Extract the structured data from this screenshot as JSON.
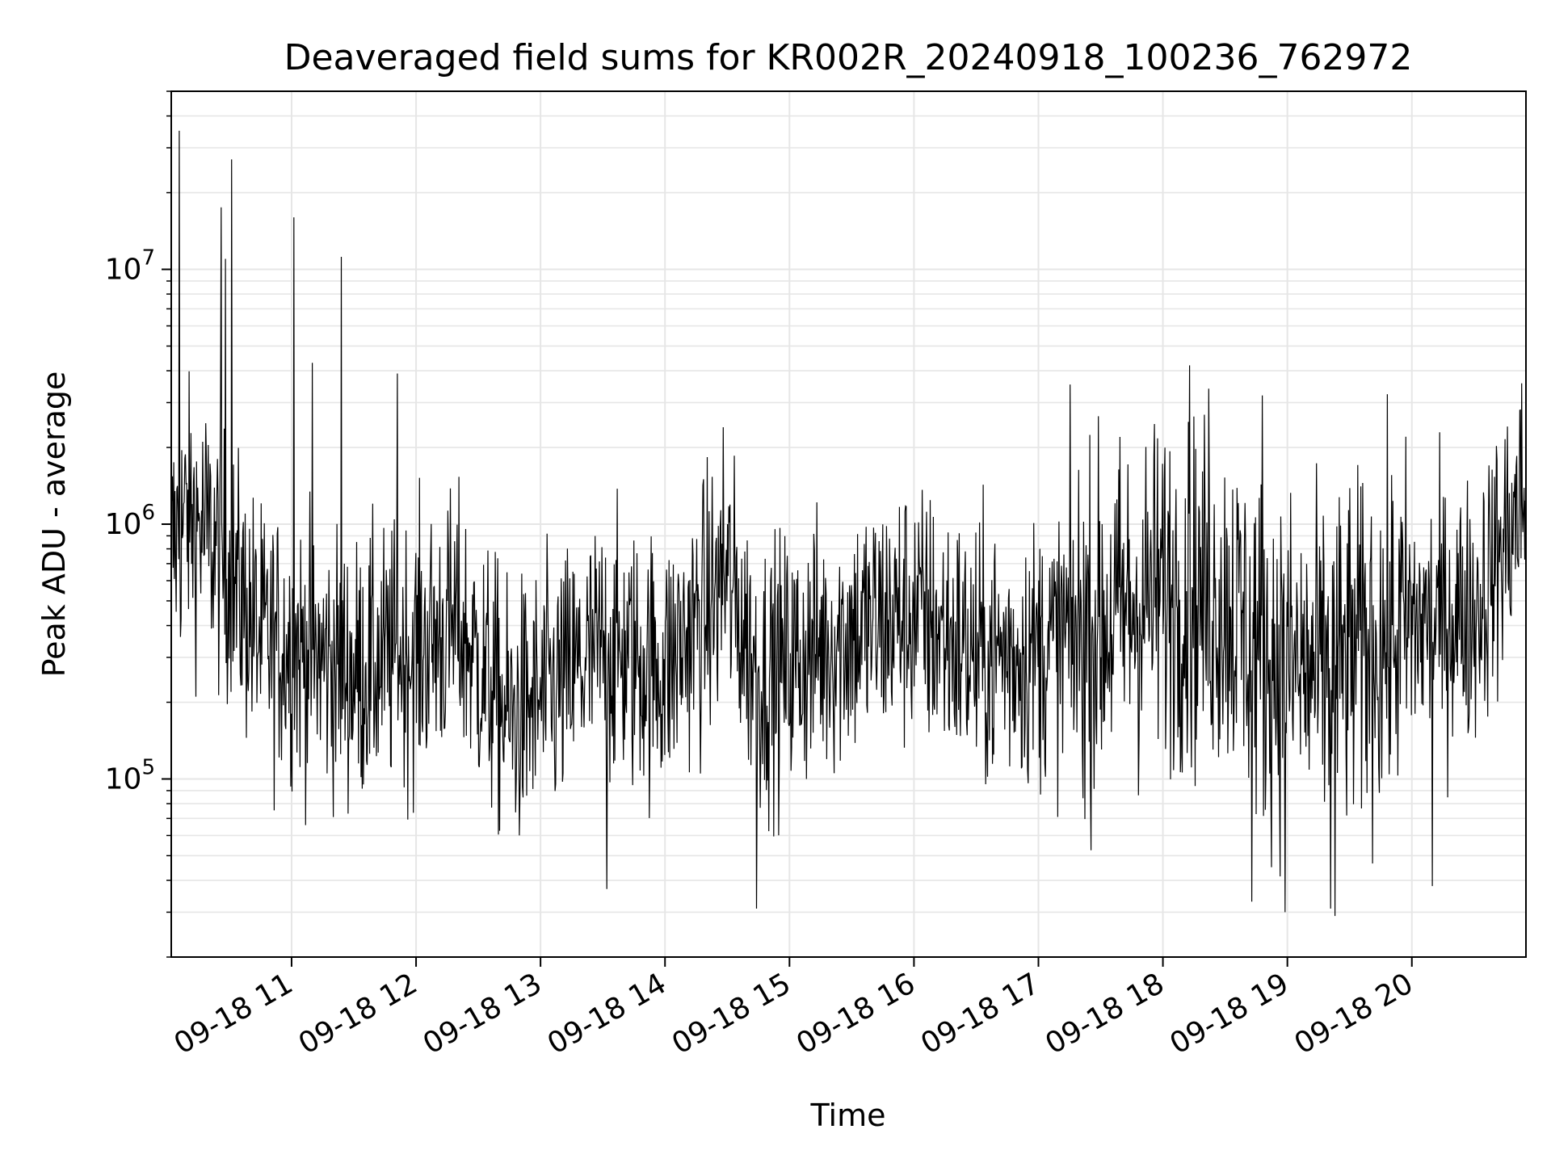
{
  "chart_data": {
    "type": "line",
    "title": "Deaveraged field sums for KR002R_20240918_100236_762972",
    "xlabel": "Time",
    "ylabel": "Peak ADU - average",
    "yscale": "log",
    "ylim": [
      20000,
      50000000
    ],
    "xlim": [
      "2024-09-18 10:02",
      "2024-09-18 20:55"
    ],
    "grid": true,
    "line_color": "#000000",
    "grid_color": "#e6e6e6",
    "x_ticks": [
      {
        "value": "2024-09-18 11:00",
        "label": "09-18 11"
      },
      {
        "value": "2024-09-18 12:00",
        "label": "09-18 12"
      },
      {
        "value": "2024-09-18 13:00",
        "label": "09-18 13"
      },
      {
        "value": "2024-09-18 14:00",
        "label": "09-18 14"
      },
      {
        "value": "2024-09-18 15:00",
        "label": "09-18 15"
      },
      {
        "value": "2024-09-18 16:00",
        "label": "09-18 16"
      },
      {
        "value": "2024-09-18 17:00",
        "label": "09-18 17"
      },
      {
        "value": "2024-09-18 18:00",
        "label": "09-18 18"
      },
      {
        "value": "2024-09-18 19:00",
        "label": "09-18 19"
      },
      {
        "value": "2024-09-18 20:00",
        "label": "09-18 20"
      }
    ],
    "y_ticks": [
      {
        "value": 100000,
        "base": "10",
        "exp": "5"
      },
      {
        "value": 1000000,
        "base": "10",
        "exp": "6"
      },
      {
        "value": 10000000,
        "base": "10",
        "exp": "7"
      }
    ],
    "series": [
      {
        "trend": [
          [
            "2024-09-18 10:02",
            800000
          ],
          [
            "2024-09-18 10:10",
            1100000
          ],
          [
            "2024-09-18 10:20",
            900000
          ],
          [
            "2024-09-18 10:30",
            650000
          ],
          [
            "2024-09-18 10:45",
            350000
          ],
          [
            "2024-09-18 11:00",
            330000
          ],
          [
            "2024-09-18 11:30",
            260000
          ],
          [
            "2024-09-18 12:00",
            320000
          ],
          [
            "2024-09-18 12:20",
            400000
          ],
          [
            "2024-09-18 12:45",
            170000
          ],
          [
            "2024-09-18 13:00",
            200000
          ],
          [
            "2024-09-18 13:30",
            320000
          ],
          [
            "2024-09-18 14:00",
            270000
          ],
          [
            "2024-09-18 14:30",
            600000
          ],
          [
            "2024-09-18 14:45",
            250000
          ],
          [
            "2024-09-18 15:00",
            280000
          ],
          [
            "2024-09-18 15:30",
            380000
          ],
          [
            "2024-09-18 16:00",
            450000
          ],
          [
            "2024-09-18 16:30",
            300000
          ],
          [
            "2024-09-18 17:00",
            320000
          ],
          [
            "2024-09-18 17:30",
            400000
          ],
          [
            "2024-09-18 18:00",
            550000
          ],
          [
            "2024-09-18 18:30",
            500000
          ],
          [
            "2024-09-18 18:50",
            300000
          ],
          [
            "2024-09-18 19:15",
            250000
          ],
          [
            "2024-09-18 19:40",
            330000
          ],
          [
            "2024-09-18 20:00",
            400000
          ],
          [
            "2024-09-18 20:30",
            450000
          ],
          [
            "2024-09-18 20:55",
            1300000
          ]
        ],
        "spikes": [
          [
            "2024-09-18 10:06",
            35000000
          ],
          [
            "2024-09-18 10:26",
            17500000
          ],
          [
            "2024-09-18 10:28",
            11000000
          ],
          [
            "2024-09-18 10:31",
            27000000
          ],
          [
            "2024-09-18 11:01",
            16000000
          ],
          [
            "2024-09-18 11:10",
            4300000
          ],
          [
            "2024-09-18 11:24",
            11200000
          ],
          [
            "2024-09-18 11:51",
            3900000
          ],
          [
            "2024-09-18 14:28",
            2400000
          ],
          [
            "2024-09-18 18:13",
            4200000
          ],
          [
            "2024-09-18 18:22",
            3400000
          ],
          [
            "2024-09-18 18:48",
            3200000
          ],
          [
            "2024-09-18 20:52",
            2800000
          ]
        ],
        "dips": [
          [
            "2024-09-18 13:32",
            37000
          ],
          [
            "2024-09-18 14:44",
            31000
          ],
          [
            "2024-09-18 18:43",
            33000
          ],
          [
            "2024-09-18 18:59",
            30000
          ],
          [
            "2024-09-18 19:21",
            31000
          ],
          [
            "2024-09-18 19:23",
            29000
          ],
          [
            "2024-09-18 20:10",
            38000
          ]
        ]
      }
    ]
  }
}
